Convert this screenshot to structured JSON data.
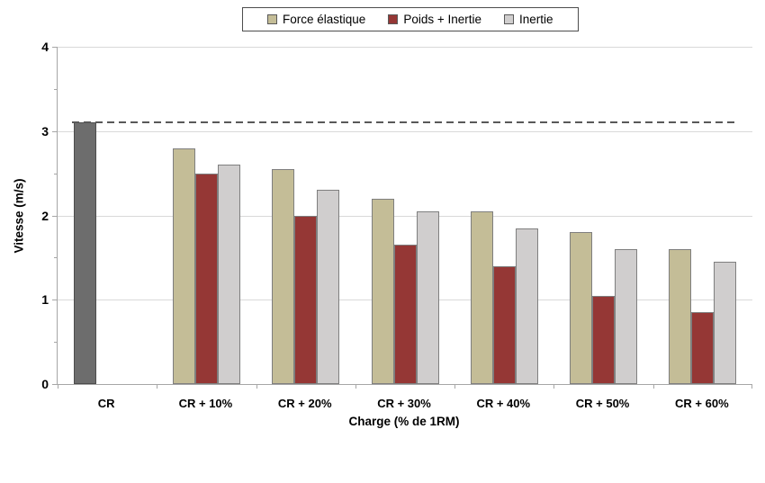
{
  "chart_data": {
    "type": "bar",
    "title": "",
    "xlabel": "Charge (% de 1RM)",
    "ylabel": "Vitesse (m/s)",
    "categories": [
      "CR",
      "CR + 10%",
      "CR + 20%",
      "CR + 30%",
      "CR + 40%",
      "CR + 50%",
      "CR + 60%"
    ],
    "series": [
      {
        "name": "Force élastique",
        "color": "#C4BD97",
        "values": [
          3.1,
          2.8,
          2.55,
          2.2,
          2.05,
          1.8,
          1.6
        ]
      },
      {
        "name": "Poids + Inertie",
        "color": "#953735",
        "values": [
          null,
          2.5,
          2.0,
          1.65,
          1.4,
          1.05,
          0.85
        ]
      },
      {
        "name": "Inertie",
        "color": "#D0CECE",
        "values": [
          null,
          2.6,
          2.3,
          2.05,
          1.85,
          1.6,
          1.45
        ]
      }
    ],
    "first_bar_override": {
      "category_index": 0,
      "series_index": 0,
      "color": "#6D6D6D",
      "border_color": "#4D4D4D"
    },
    "reference_line": {
      "value": 3.1,
      "style": "dashed",
      "color": "#595959"
    },
    "ylim": [
      0,
      4
    ],
    "y_major_ticks": [
      0,
      1,
      2,
      3,
      4
    ],
    "y_minor_step": 0.5,
    "grid": true,
    "legend_position": "top-center",
    "bar_border_color": "#7F7F7F",
    "gridline_color": "#D9D9D9",
    "axis_color": "#A6A6A6"
  }
}
